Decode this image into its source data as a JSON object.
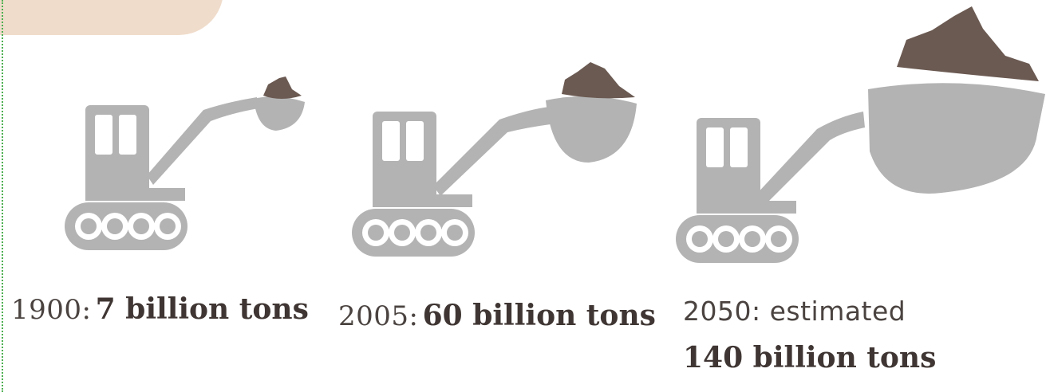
{
  "colors": {
    "machine": "#b3b3b3",
    "load": "#6b5a52",
    "tab": "#f0dccb",
    "text": "#4a4340"
  },
  "icons": [
    "excavator-icon",
    "excavator-icon",
    "excavator-icon"
  ],
  "items": [
    {
      "year_label": "1900:",
      "amount": "7 billion tons"
    },
    {
      "year_label": "2005:",
      "amount": "60 billion tons"
    },
    {
      "year_label": "2050: estimated",
      "amount": "140 billion tons"
    }
  ]
}
